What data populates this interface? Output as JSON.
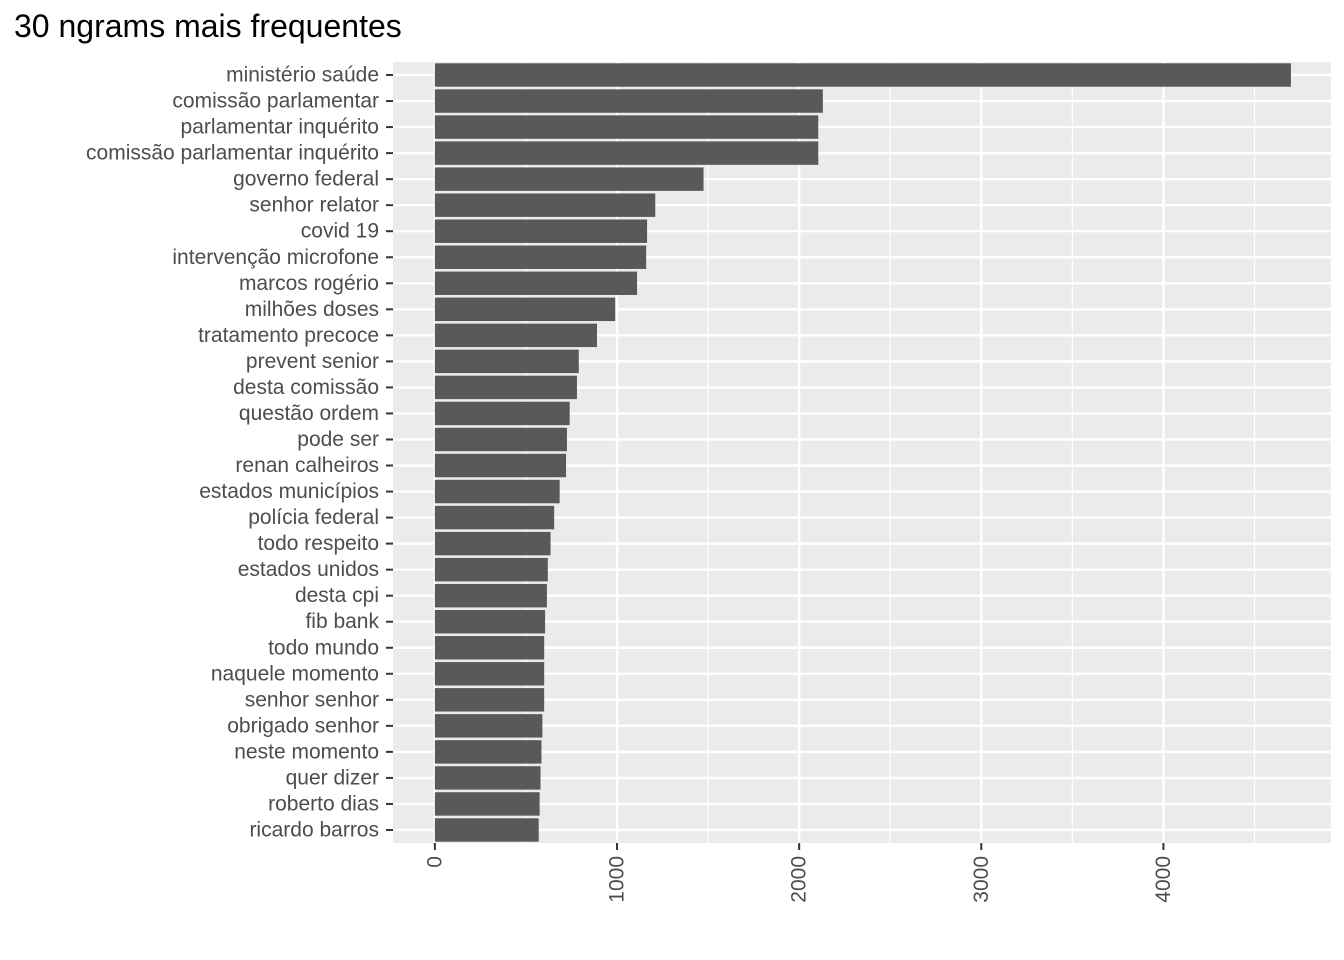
{
  "chart_data": {
    "type": "bar",
    "orientation": "horizontal",
    "title": "30 ngrams mais frequentes",
    "xlabel": "",
    "ylabel": "",
    "xlim": [
      -230,
      4920
    ],
    "x_ticks": [
      0,
      1000,
      2000,
      3000,
      4000
    ],
    "x_tick_labels": [
      "0",
      "1000",
      "2000",
      "3000",
      "4000"
    ],
    "grid": true,
    "colors": {
      "panel": "#ebebeb",
      "grid": "#ffffff",
      "bar": "#595959",
      "text": "#4d4d4d",
      "title": "#000000"
    },
    "categories": [
      "ministério saúde",
      "comissão parlamentar",
      "parlamentar inquérito",
      "comissão parlamentar inquérito",
      "governo federal",
      "senhor relator",
      "covid 19",
      "intervenção microfone",
      "marcos rogério",
      "milhões doses",
      "tratamento precoce",
      "prevent senior",
      "desta comissão",
      "questão ordem",
      "pode ser",
      "renan calheiros",
      "estados municípios",
      "polícia federal",
      "todo respeito",
      "estados unidos",
      "desta cpi",
      "fib bank",
      "todo mundo",
      "naquele momento",
      "senhor senhor",
      "obrigado senhor",
      "neste momento",
      "quer dizer",
      "roberto dias",
      "ricardo barros"
    ],
    "values": [
      4700,
      2130,
      2105,
      2105,
      1475,
      1210,
      1165,
      1160,
      1110,
      990,
      890,
      790,
      780,
      740,
      725,
      720,
      685,
      655,
      635,
      620,
      615,
      605,
      600,
      600,
      600,
      590,
      585,
      580,
      575,
      570
    ]
  }
}
